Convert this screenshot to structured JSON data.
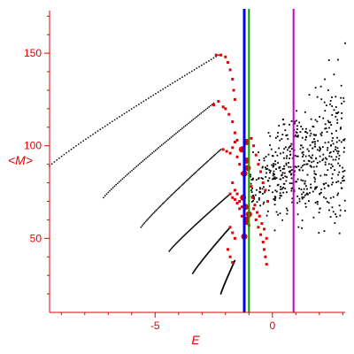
{
  "chart_data": {
    "type": "scatter",
    "title": "",
    "xlabel": "E",
    "ylabel": "<M>",
    "xlim": [
      -9.5,
      3.1
    ],
    "ylim": [
      10,
      173
    ],
    "xticks": [
      -5,
      0
    ],
    "xtick_labels": [
      "-5",
      "0"
    ],
    "yticks": [
      50,
      100,
      150
    ],
    "ytick_labels": [
      "50",
      "100",
      "150"
    ],
    "grid": false,
    "legend": "none",
    "colors": {
      "axis": "#e60000",
      "black_points": "#000000",
      "red_points": "#e60000",
      "line_blue": "#0000ff",
      "line_green": "#00a000",
      "line_magenta": "#cc00cc"
    },
    "vertical_lines": [
      {
        "x": -1.2,
        "color": "#0000ff"
      },
      {
        "x": -1.0,
        "color": "#00a000"
      },
      {
        "x": 0.9,
        "color": "#cc00cc"
      }
    ],
    "series": [
      {
        "color": "#000000",
        "style": "curved-bands",
        "bands": [
          {
            "x0": -9.5,
            "x1": -2.3,
            "y0": 89,
            "y1": 149
          },
          {
            "x0": -7.2,
            "x1": -2.5,
            "y0": 72,
            "y1": 123
          },
          {
            "x0": -5.6,
            "x1": -2.2,
            "y0": 56,
            "y1": 98
          },
          {
            "x0": -4.4,
            "x1": -1.8,
            "y0": 43,
            "y1": 74
          },
          {
            "x0": -3.4,
            "x1": -1.8,
            "y0": 31,
            "y1": 56
          },
          {
            "x0": -2.2,
            "x1": -1.6,
            "y0": 20,
            "y1": 38
          }
        ]
      },
      {
        "color": "#e60000",
        "style": "clusters",
        "points": [
          [
            -2.4,
            149
          ],
          [
            -2.2,
            149
          ],
          [
            -2.0,
            148
          ],
          [
            -1.9,
            145
          ],
          [
            -1.8,
            141
          ],
          [
            -1.7,
            136
          ],
          [
            -1.65,
            130
          ],
          [
            -1.6,
            125
          ],
          [
            -2.5,
            122
          ],
          [
            -2.3,
            124
          ],
          [
            -2.1,
            121
          ],
          [
            -2.0,
            120
          ],
          [
            -1.85,
            117
          ],
          [
            -1.7,
            113
          ],
          [
            -1.6,
            107
          ],
          [
            -1.5,
            103
          ],
          [
            -2.1,
            98
          ],
          [
            -1.95,
            97
          ],
          [
            -1.8,
            96
          ],
          [
            -1.7,
            99
          ],
          [
            -1.6,
            102
          ],
          [
            -1.5,
            94
          ],
          [
            -1.4,
            90
          ],
          [
            -1.3,
            85
          ],
          [
            -1.8,
            74
          ],
          [
            -1.7,
            72
          ],
          [
            -1.6,
            71
          ],
          [
            -1.5,
            69
          ],
          [
            -1.4,
            66
          ],
          [
            -1.3,
            62
          ],
          [
            -1.2,
            60
          ],
          [
            -1.1,
            58
          ],
          [
            -1.8,
            56
          ],
          [
            -1.7,
            53
          ],
          [
            -1.6,
            50
          ],
          [
            -1.9,
            44
          ],
          [
            -1.8,
            40
          ],
          [
            -1.7,
            37
          ],
          [
            -0.9,
            104
          ],
          [
            -0.8,
            100
          ],
          [
            -0.7,
            95
          ],
          [
            -0.6,
            90
          ],
          [
            -0.5,
            86
          ],
          [
            -0.4,
            80
          ],
          [
            -0.3,
            76
          ],
          [
            -0.2,
            70
          ],
          [
            -0.8,
            66
          ],
          [
            -0.7,
            60
          ],
          [
            -0.6,
            56
          ],
          [
            -0.5,
            52
          ],
          [
            -0.4,
            48
          ],
          [
            -0.35,
            44
          ],
          [
            -0.3,
            40
          ],
          [
            -0.25,
            36
          ],
          [
            -0.9,
            78
          ],
          [
            -0.85,
            72
          ],
          [
            -0.75,
            68
          ],
          [
            -0.65,
            64
          ],
          [
            -0.55,
            62
          ],
          [
            -0.45,
            58
          ],
          [
            -0.35,
            55
          ],
          [
            -0.25,
            50
          ],
          [
            -1.7,
            80
          ],
          [
            -1.6,
            76
          ],
          [
            -1.5,
            74
          ],
          [
            -1.4,
            70
          ],
          [
            -1.3,
            67
          ],
          [
            -1.2,
            64
          ],
          [
            -1.1,
            60
          ],
          [
            -1.0,
            57
          ]
        ],
        "large_points": [
          [
            -1.2,
            51
          ],
          [
            -1.1,
            60
          ],
          [
            -1.25,
            72
          ],
          [
            -1.2,
            85
          ],
          [
            -1.3,
            98
          ],
          [
            -1.1,
            102
          ],
          [
            -1.15,
            67
          ],
          [
            -1.0,
            63
          ],
          [
            -1.05,
            88
          ],
          [
            -1.1,
            92
          ]
        ]
      },
      {
        "color": "#000000",
        "style": "scatter-cloud",
        "x_range": [
          -1.0,
          3.1
        ],
        "y_range": [
          48,
          173
        ],
        "count": 520
      }
    ]
  }
}
